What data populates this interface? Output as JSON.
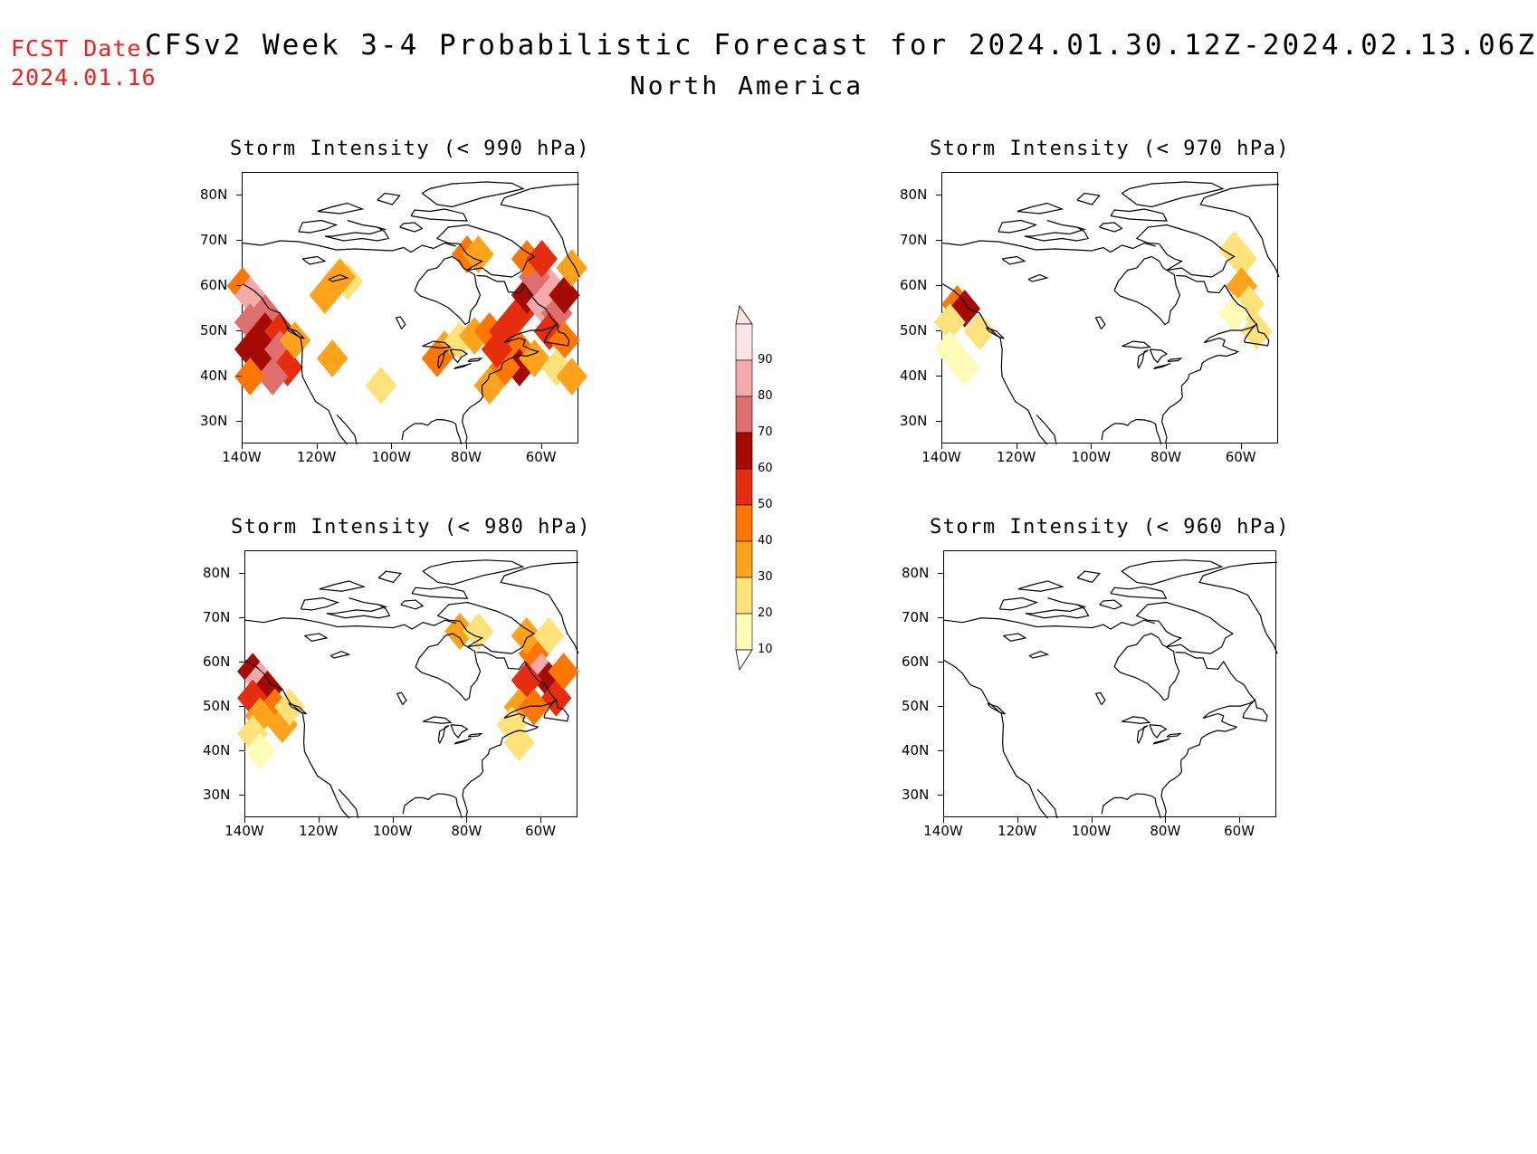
{
  "header": {
    "fcst_label_line1": "FCST Date:",
    "fcst_label_line2": "2024.01.16",
    "title": "CFSv2 Week 3-4 Probabilistic Forecast for 2024.01.30.12Z-2024.02.13.06Z",
    "subtitle": "North America"
  },
  "panels": [
    {
      "title": "Storm Intensity (< 990 hPa)",
      "y_ticks": [
        "80N",
        "70N",
        "60N",
        "50N",
        "40N",
        "30N"
      ],
      "x_ticks": [
        "140W",
        "120W",
        "100W",
        "80W",
        "60W"
      ],
      "patches": [
        {
          "lon": -140,
          "lat": 60,
          "value": 40
        },
        {
          "lon": -138,
          "lat": 58,
          "value": 80
        },
        {
          "lon": -136,
          "lat": 56,
          "value": 85
        },
        {
          "lon": -134,
          "lat": 54,
          "value": 75
        },
        {
          "lon": -138,
          "lat": 52,
          "value": 70
        },
        {
          "lon": -134,
          "lat": 50,
          "value": 65
        },
        {
          "lon": -130,
          "lat": 50,
          "value": 55
        },
        {
          "lon": -138,
          "lat": 46,
          "value": 65
        },
        {
          "lon": -134,
          "lat": 44,
          "value": 60
        },
        {
          "lon": -130,
          "lat": 46,
          "value": 75
        },
        {
          "lon": -128,
          "lat": 42,
          "value": 55
        },
        {
          "lon": -132,
          "lat": 40,
          "value": 70
        },
        {
          "lon": -138,
          "lat": 40,
          "value": 45
        },
        {
          "lon": -126,
          "lat": 48,
          "value": 35
        },
        {
          "lon": -118,
          "lat": 58,
          "value": 35
        },
        {
          "lon": -112,
          "lat": 61,
          "value": 25
        },
        {
          "lon": -114,
          "lat": 62,
          "value": 30
        },
        {
          "lon": -116,
          "lat": 44,
          "value": 35
        },
        {
          "lon": -103,
          "lat": 38,
          "value": 25
        },
        {
          "lon": -80,
          "lat": 67,
          "value": 45
        },
        {
          "lon": -77,
          "lat": 67,
          "value": 35
        },
        {
          "lon": -86,
          "lat": 46,
          "value": 30
        },
        {
          "lon": -88,
          "lat": 44,
          "value": 40
        },
        {
          "lon": -82,
          "lat": 48,
          "value": 20
        },
        {
          "lon": -78,
          "lat": 49,
          "value": 30
        },
        {
          "lon": -74,
          "lat": 50,
          "value": 45
        },
        {
          "lon": -70,
          "lat": 50,
          "value": 50
        },
        {
          "lon": -66,
          "lat": 54,
          "value": 55
        },
        {
          "lon": -64,
          "lat": 58,
          "value": 65
        },
        {
          "lon": -60,
          "lat": 56,
          "value": 80
        },
        {
          "lon": -58,
          "lat": 60,
          "value": 85
        },
        {
          "lon": -62,
          "lat": 62,
          "value": 70
        },
        {
          "lon": -56,
          "lat": 54,
          "value": 70
        },
        {
          "lon": -54,
          "lat": 58,
          "value": 65
        },
        {
          "lon": -64,
          "lat": 66,
          "value": 40
        },
        {
          "lon": -60,
          "lat": 66,
          "value": 50
        },
        {
          "lon": -52,
          "lat": 64,
          "value": 30
        },
        {
          "lon": -58,
          "lat": 50,
          "value": 55
        },
        {
          "lon": -54,
          "lat": 48,
          "value": 45
        },
        {
          "lon": -66,
          "lat": 46,
          "value": 45
        },
        {
          "lon": -66,
          "lat": 42,
          "value": 60
        },
        {
          "lon": -70,
          "lat": 42,
          "value": 40
        },
        {
          "lon": -62,
          "lat": 44,
          "value": 30
        },
        {
          "lon": -56,
          "lat": 42,
          "value": 25
        },
        {
          "lon": -72,
          "lat": 46,
          "value": 55
        },
        {
          "lon": -74,
          "lat": 38,
          "value": 30
        },
        {
          "lon": -52,
          "lat": 40,
          "value": 35
        }
      ]
    },
    {
      "title": "Storm Intensity (< 970 hPa)",
      "y_ticks": [
        "80N",
        "70N",
        "60N",
        "50N",
        "40N",
        "30N"
      ],
      "x_ticks": [
        "140W",
        "120W",
        "100W",
        "80W",
        "60W"
      ],
      "patches": [
        {
          "lon": -136,
          "lat": 56,
          "value": 40
        },
        {
          "lon": -134,
          "lat": 55,
          "value": 60
        },
        {
          "lon": -138,
          "lat": 52,
          "value": 25
        },
        {
          "lon": -130,
          "lat": 50,
          "value": 20
        },
        {
          "lon": -138,
          "lat": 46,
          "value": 15
        },
        {
          "lon": -134,
          "lat": 42,
          "value": 15
        },
        {
          "lon": -60,
          "lat": 66,
          "value": 25
        },
        {
          "lon": -60,
          "lat": 60,
          "value": 35
        },
        {
          "lon": -58,
          "lat": 56,
          "value": 20
        },
        {
          "lon": -62,
          "lat": 54,
          "value": 15
        },
        {
          "lon": -56,
          "lat": 50,
          "value": 20
        },
        {
          "lon": -62,
          "lat": 68,
          "value": 20
        }
      ]
    },
    {
      "title": "Storm Intensity (< 980 hPa)",
      "y_ticks": [
        "80N",
        "70N",
        "60N",
        "50N",
        "40N",
        "30N"
      ],
      "x_ticks": [
        "140W",
        "120W",
        "100W",
        "80W",
        "60W"
      ],
      "patches": [
        {
          "lon": -138,
          "lat": 58,
          "value": 65
        },
        {
          "lon": -136,
          "lat": 56,
          "value": 85
        },
        {
          "lon": -134,
          "lat": 54,
          "value": 60
        },
        {
          "lon": -138,
          "lat": 52,
          "value": 55
        },
        {
          "lon": -132,
          "lat": 50,
          "value": 45
        },
        {
          "lon": -136,
          "lat": 48,
          "value": 35
        },
        {
          "lon": -130,
          "lat": 46,
          "value": 30
        },
        {
          "lon": -138,
          "lat": 44,
          "value": 25
        },
        {
          "lon": -128,
          "lat": 50,
          "value": 25
        },
        {
          "lon": -136,
          "lat": 40,
          "value": 15
        },
        {
          "lon": -82,
          "lat": 67,
          "value": 35
        },
        {
          "lon": -77,
          "lat": 67,
          "value": 25
        },
        {
          "lon": -62,
          "lat": 62,
          "value": 45
        },
        {
          "lon": -60,
          "lat": 58,
          "value": 80
        },
        {
          "lon": -58,
          "lat": 56,
          "value": 65
        },
        {
          "lon": -56,
          "lat": 52,
          "value": 55
        },
        {
          "lon": -64,
          "lat": 56,
          "value": 50
        },
        {
          "lon": -54,
          "lat": 58,
          "value": 40
        },
        {
          "lon": -66,
          "lat": 50,
          "value": 35
        },
        {
          "lon": -62,
          "lat": 50,
          "value": 45
        },
        {
          "lon": -64,
          "lat": 66,
          "value": 30
        },
        {
          "lon": -58,
          "lat": 66,
          "value": 25
        },
        {
          "lon": -68,
          "lat": 46,
          "value": 25
        },
        {
          "lon": -66,
          "lat": 42,
          "value": 20
        }
      ]
    },
    {
      "title": "Storm Intensity (< 960 hPa)",
      "y_ticks": [
        "80N",
        "70N",
        "60N",
        "50N",
        "40N",
        "30N"
      ],
      "x_ticks": [
        "140W",
        "120W",
        "100W",
        "80W",
        "60W"
      ],
      "patches": []
    }
  ],
  "legend": {
    "labels": [
      "10",
      "20",
      "30",
      "40",
      "50",
      "60",
      "70",
      "80",
      "90"
    ],
    "colors": [
      "#fffcb8",
      "#ffe27a",
      "#ffa31a",
      "#ff7700",
      "#e62e0e",
      "#a50a00",
      "#de6f6f",
      "#f4a9aa",
      "#fde4e6"
    ]
  }
}
